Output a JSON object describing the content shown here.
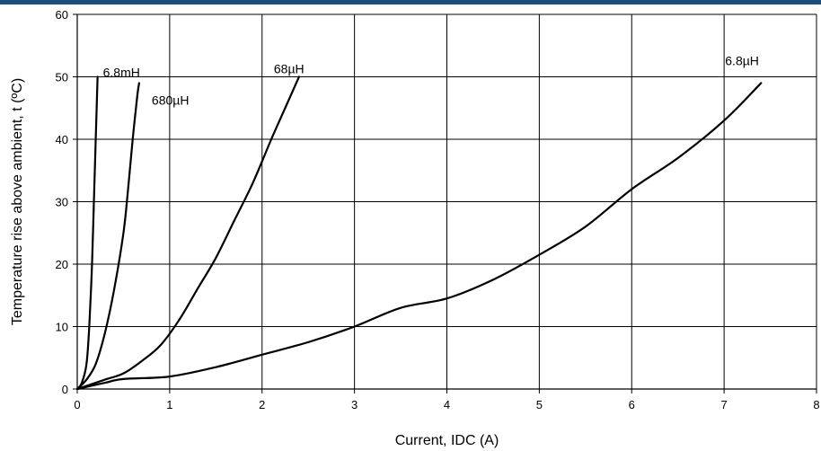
{
  "chart_data": {
    "type": "line",
    "title": "",
    "xlabel": "Current, IDC (A)",
    "ylabel": "Temperature rise above ambient, t (ºC)",
    "xlim": [
      0,
      8
    ],
    "ylim": [
      0,
      60
    ],
    "xticks": [
      0,
      1,
      2,
      3,
      4,
      5,
      6,
      7,
      8
    ],
    "yticks": [
      0,
      10,
      20,
      30,
      40,
      50,
      60
    ],
    "grid": true,
    "series": [
      {
        "name": "6.8mH",
        "points": [
          [
            0,
            0
          ],
          [
            0.05,
            1
          ],
          [
            0.1,
            4
          ],
          [
            0.13,
            10
          ],
          [
            0.16,
            20
          ],
          [
            0.18,
            30
          ],
          [
            0.2,
            40
          ],
          [
            0.22,
            50
          ]
        ]
      },
      {
        "name": "680µH",
        "points": [
          [
            0,
            0
          ],
          [
            0.1,
            1.5
          ],
          [
            0.2,
            4
          ],
          [
            0.3,
            9
          ],
          [
            0.4,
            16
          ],
          [
            0.5,
            25
          ],
          [
            0.55,
            32
          ],
          [
            0.6,
            40
          ],
          [
            0.65,
            47
          ],
          [
            0.67,
            49
          ]
        ]
      },
      {
        "name": "68µH",
        "points": [
          [
            0,
            0
          ],
          [
            0.3,
            1.5
          ],
          [
            0.5,
            2.5
          ],
          [
            0.7,
            4.5
          ],
          [
            0.9,
            7
          ],
          [
            1.1,
            11
          ],
          [
            1.3,
            16
          ],
          [
            1.5,
            21
          ],
          [
            1.7,
            27
          ],
          [
            1.9,
            33
          ],
          [
            2.1,
            40
          ],
          [
            2.25,
            45
          ],
          [
            2.4,
            50
          ]
        ]
      },
      {
        "name": "6.8µH",
        "points": [
          [
            0,
            0
          ],
          [
            0.3,
            1
          ],
          [
            0.5,
            1.6
          ],
          [
            1.0,
            2
          ],
          [
            1.5,
            3.5
          ],
          [
            2.0,
            5.5
          ],
          [
            2.5,
            7.5
          ],
          [
            3.0,
            10
          ],
          [
            3.5,
            13
          ],
          [
            4.0,
            14.5
          ],
          [
            4.5,
            17.5
          ],
          [
            5.0,
            21.5
          ],
          [
            5.5,
            26
          ],
          [
            6.0,
            32
          ],
          [
            6.5,
            37
          ],
          [
            7.0,
            43
          ],
          [
            7.4,
            49
          ]
        ]
      }
    ]
  }
}
